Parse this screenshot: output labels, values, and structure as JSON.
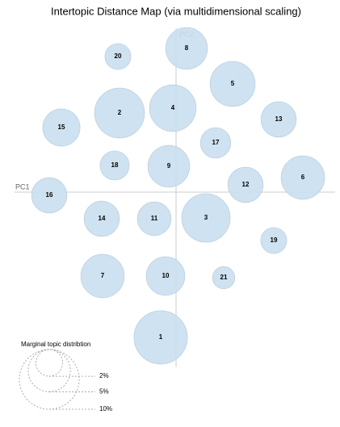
{
  "chart_data": {
    "type": "bubble",
    "title": "Intertopic Distance Map (via multidimensional scaling)",
    "x_label": "PC1",
    "y_label": "PC2",
    "labels": [
      "1",
      "2",
      "3",
      "4",
      "5",
      "6",
      "7",
      "8",
      "9",
      "10",
      "11",
      "12",
      "13",
      "14",
      "15",
      "16",
      "17",
      "18",
      "19",
      "20",
      "21"
    ],
    "x": [
      -0.19,
      -0.7,
      0.37,
      -0.04,
      0.7,
      1.57,
      -0.91,
      0.13,
      -0.09,
      -0.13,
      -0.27,
      0.86,
      1.27,
      -0.92,
      -1.42,
      -1.57,
      0.49,
      -0.76,
      1.21,
      -0.72,
      0.59
    ],
    "y": [
      -1.8,
      0.98,
      -0.32,
      1.04,
      1.34,
      0.18,
      -1.04,
      1.78,
      0.32,
      -1.04,
      -0.33,
      0.09,
      0.9,
      -0.33,
      0.8,
      -0.04,
      0.61,
      0.33,
      -0.6,
      1.68,
      -1.06
    ],
    "size": [
      8.0,
      7.0,
      6.6,
      6.1,
      5.7,
      5.3,
      5.3,
      4.9,
      4.9,
      4.2,
      3.2,
      3.5,
      3.5,
      3.5,
      3.9,
      3.5,
      2.6,
      2.4,
      1.9,
      1.9,
      1.4
    ],
    "xlim": [
      -2.0,
      1.97
    ],
    "ylim": [
      -2.17,
      2.03
    ],
    "color": "#c9dff0",
    "legend_title": "Marginal topic distribtion",
    "legend_sizes": [
      {
        "value": 2,
        "label": "2%"
      },
      {
        "value": 5,
        "label": "5%"
      },
      {
        "value": 10,
        "label": "10%"
      }
    ]
  }
}
